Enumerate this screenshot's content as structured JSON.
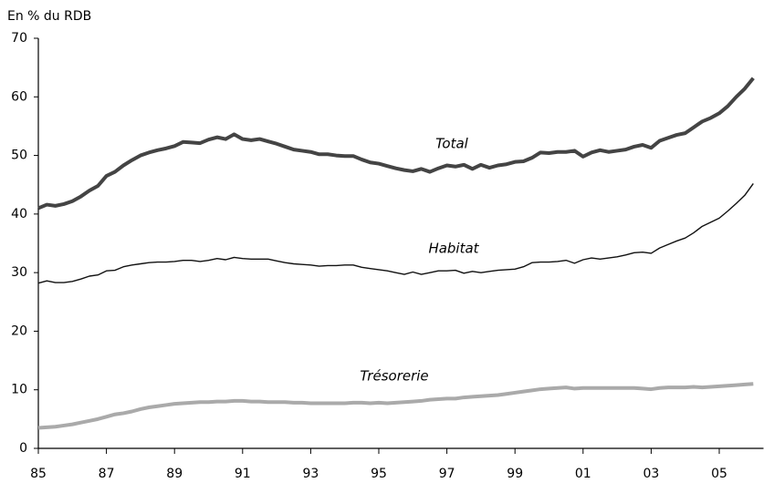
{
  "chart_data": {
    "type": "line",
    "ylabel": "En % du RDB",
    "x": [
      1985,
      1985.25,
      1985.5,
      1985.75,
      1986,
      1986.25,
      1986.5,
      1986.75,
      1987,
      1987.25,
      1987.5,
      1987.75,
      1988,
      1988.25,
      1988.5,
      1988.75,
      1989,
      1989.25,
      1989.5,
      1989.75,
      1990,
      1990.25,
      1990.5,
      1990.75,
      1991,
      1991.25,
      1991.5,
      1991.75,
      1992,
      1992.25,
      1992.5,
      1992.75,
      1993,
      1993.25,
      1993.5,
      1993.75,
      1994,
      1994.25,
      1994.5,
      1994.75,
      1995,
      1995.25,
      1995.5,
      1995.75,
      1996,
      1996.25,
      1996.5,
      1996.75,
      1997,
      1997.25,
      1997.5,
      1997.75,
      1998,
      1998.25,
      1998.5,
      1998.75,
      1999,
      1999.25,
      1999.5,
      1999.75,
      2000,
      2000.25,
      2000.5,
      2000.75,
      2001,
      2001.25,
      2001.5,
      2001.75,
      2002,
      2002.25,
      2002.5,
      2002.75,
      2003,
      2003.25,
      2003.5,
      2003.75,
      2004,
      2004.25,
      2004.5,
      2004.75,
      2005,
      2005.25,
      2005.5,
      2005.75,
      2006
    ],
    "series": [
      {
        "name": "Total",
        "color": "#444444",
        "width": 4,
        "values": [
          41.0,
          41.6,
          41.4,
          41.7,
          42.2,
          43.0,
          44.0,
          44.8,
          46.5,
          47.2,
          48.3,
          49.2,
          50.0,
          50.5,
          50.9,
          51.2,
          51.6,
          52.3,
          52.2,
          52.1,
          52.7,
          53.1,
          52.8,
          53.6,
          52.8,
          52.6,
          52.8,
          52.4,
          52.0,
          51.5,
          51.0,
          50.8,
          50.6,
          50.2,
          50.2,
          50.0,
          49.9,
          49.9,
          49.3,
          48.8,
          48.6,
          48.2,
          47.8,
          47.5,
          47.3,
          47.7,
          47.2,
          47.8,
          48.3,
          48.1,
          48.4,
          47.7,
          48.4,
          47.9,
          48.3,
          48.5,
          48.9,
          49.0,
          49.6,
          50.5,
          50.4,
          50.6,
          50.6,
          50.8,
          49.8,
          50.5,
          50.9,
          50.6,
          50.8,
          51.0,
          51.5,
          51.8,
          51.3,
          52.5,
          53.0,
          53.5,
          53.8,
          54.8,
          55.8,
          56.4,
          57.2,
          58.4,
          60.0,
          61.4,
          63.2
        ]
      },
      {
        "name": "Habitat",
        "color": "#111111",
        "width": 1.4,
        "values": [
          28.2,
          28.6,
          28.3,
          28.3,
          28.5,
          28.9,
          29.4,
          29.6,
          30.3,
          30.4,
          31.0,
          31.3,
          31.5,
          31.7,
          31.8,
          31.8,
          31.9,
          32.1,
          32.1,
          31.9,
          32.1,
          32.4,
          32.2,
          32.6,
          32.4,
          32.3,
          32.3,
          32.3,
          32.0,
          31.7,
          31.5,
          31.4,
          31.3,
          31.1,
          31.2,
          31.2,
          31.3,
          31.3,
          30.9,
          30.7,
          30.5,
          30.3,
          30.0,
          29.7,
          30.1,
          29.7,
          30.0,
          30.3,
          30.3,
          30.4,
          29.9,
          30.2,
          30.0,
          30.2,
          30.4,
          30.5,
          30.6,
          31.0,
          31.7,
          31.8,
          31.8,
          31.9,
          32.1,
          31.6,
          32.2,
          32.5,
          32.3,
          32.5,
          32.7,
          33.0,
          33.4,
          33.5,
          33.3,
          34.2,
          34.8,
          35.4,
          35.9,
          36.8,
          37.9,
          38.6,
          39.3,
          40.5,
          41.8,
          43.2,
          45.2
        ]
      },
      {
        "name": "Trésorerie",
        "color": "#aaaaaa",
        "width": 4,
        "values": [
          3.5,
          3.6,
          3.7,
          3.9,
          4.1,
          4.4,
          4.7,
          5.0,
          5.4,
          5.8,
          6.0,
          6.3,
          6.7,
          7.0,
          7.2,
          7.4,
          7.6,
          7.7,
          7.8,
          7.9,
          7.9,
          8.0,
          8.0,
          8.1,
          8.1,
          8.0,
          8.0,
          7.9,
          7.9,
          7.9,
          7.8,
          7.8,
          7.7,
          7.7,
          7.7,
          7.7,
          7.7,
          7.8,
          7.8,
          7.7,
          7.8,
          7.7,
          7.8,
          7.9,
          8.0,
          8.1,
          8.3,
          8.4,
          8.5,
          8.5,
          8.7,
          8.8,
          8.9,
          9.0,
          9.1,
          9.3,
          9.5,
          9.7,
          9.9,
          10.1,
          10.2,
          10.3,
          10.4,
          10.2,
          10.3,
          10.3,
          10.3,
          10.3,
          10.3,
          10.3,
          10.3,
          10.2,
          10.1,
          10.3,
          10.4,
          10.4,
          10.4,
          10.5,
          10.4,
          10.5,
          10.6,
          10.7,
          10.8,
          10.9,
          11.0
        ]
      }
    ],
    "xlim": [
      1985,
      2006.3
    ],
    "xticks": [
      {
        "value": 1985,
        "label": "85"
      },
      {
        "value": 1987,
        "label": "87"
      },
      {
        "value": 1989,
        "label": "89"
      },
      {
        "value": 1991,
        "label": "91"
      },
      {
        "value": 1993,
        "label": "93"
      },
      {
        "value": 1995,
        "label": "95"
      },
      {
        "value": 1997,
        "label": "97"
      },
      {
        "value": 1999,
        "label": "99"
      },
      {
        "value": 2001,
        "label": "01"
      },
      {
        "value": 2003,
        "label": "03"
      },
      {
        "value": 2005,
        "label": "05"
      }
    ],
    "ylim": [
      0,
      70
    ],
    "yticks": [
      0,
      10,
      20,
      30,
      40,
      50,
      60,
      70
    ],
    "grid": false
  }
}
